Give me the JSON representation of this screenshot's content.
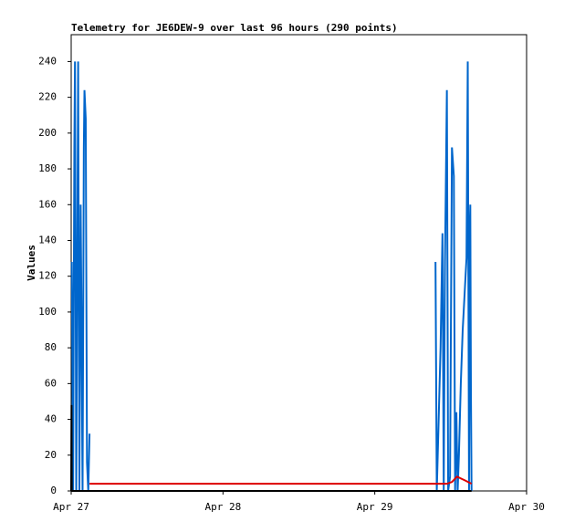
{
  "chart_data": {
    "type": "line",
    "title": "Telemetry for JE6DEW-9 over last 96 hours (290 points)",
    "y_label": "Values",
    "xlim": [
      0,
      72
    ],
    "xticks": [
      {
        "value": 0,
        "label": "Apr 27"
      },
      {
        "value": 24,
        "label": "Apr 28"
      },
      {
        "value": 48,
        "label": "Apr 29"
      },
      {
        "value": 72,
        "label": "Apr 30"
      }
    ],
    "ylim": [
      0,
      255
    ],
    "yticks": [
      0,
      20,
      40,
      60,
      80,
      100,
      120,
      140,
      160,
      180,
      200,
      220,
      240
    ],
    "grid": false,
    "series": [
      {
        "name": "blue",
        "color": "#0066cc",
        "x": [
          0.1,
          0.3,
          0.5,
          0.6,
          0.8,
          1.0,
          1.1,
          1.3,
          1.5,
          1.6,
          1.8,
          2.0,
          2.1,
          2.3,
          2.5,
          2.7,
          2.9,
          30,
          57.6,
          57.8,
          58.4,
          58.7,
          58.9,
          59.1,
          59.4,
          59.6,
          59.9,
          60.2,
          60.5,
          60.7,
          60.9,
          61.1,
          61.3,
          61.6,
          61.9,
          62.2,
          62.5,
          62.7,
          62.9,
          63.0,
          63.1,
          63.2,
          63.3
        ],
        "values": [
          128,
          0,
          192,
          240,
          0,
          160,
          240,
          0,
          160,
          112,
          0,
          192,
          224,
          208,
          16,
          0,
          32,
          null,
          128,
          0,
          80,
          144,
          0,
          128,
          224,
          0,
          8,
          192,
          176,
          0,
          44,
          0,
          20,
          60,
          90,
          110,
          130,
          240,
          0,
          144,
          160,
          56,
          0
        ]
      },
      {
        "name": "red",
        "color": "#dd0000",
        "x": [
          2.9,
          59.4,
          60.2,
          61.0,
          62.2,
          63.3
        ],
        "values": [
          4,
          4,
          5,
          8,
          6,
          4
        ]
      },
      {
        "name": "black",
        "color": "#000000",
        "x": [
          0,
          0.05,
          0.1,
          63.3
        ],
        "values": [
          0,
          48,
          0,
          0
        ]
      }
    ]
  }
}
